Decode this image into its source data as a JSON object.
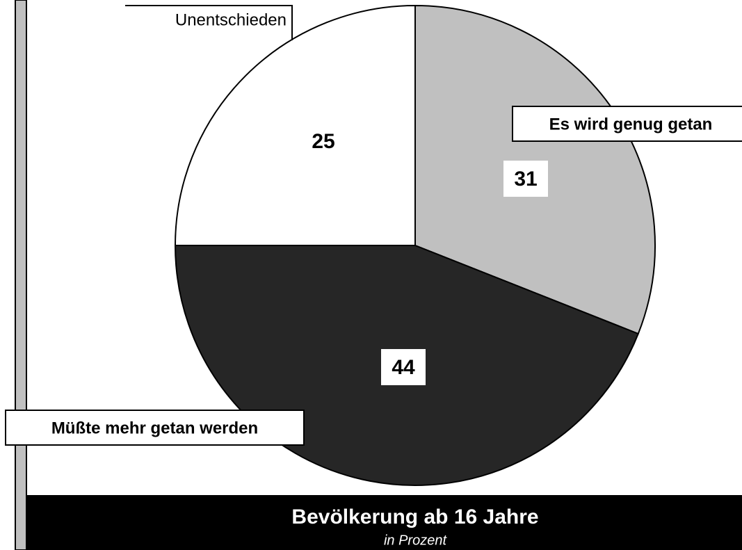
{
  "chart_data": {
    "type": "pie",
    "title": "Bevölkerung ab 16 Jahre",
    "subtitle": "in Prozent",
    "categories": [
      "Es wird genug getan",
      "Müßte mehr getan werden",
      "Unentschieden"
    ],
    "values": [
      31,
      44,
      25
    ],
    "colors": [
      "#c0c0c0",
      "#262626",
      "#ffffff"
    ]
  }
}
